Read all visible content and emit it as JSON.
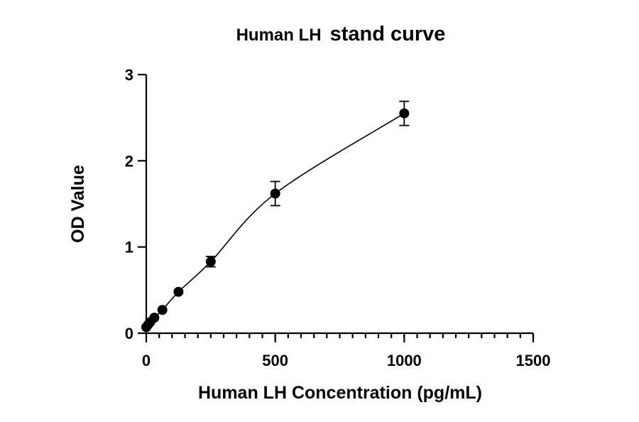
{
  "chart_data": {
    "type": "scatter",
    "title_part1": "Human LH",
    "title_part2": "stand curve",
    "xlabel": "Human LH Concentration (pg/mL)",
    "ylabel": "OD Value",
    "xlim": [
      0,
      1500
    ],
    "ylim": [
      0,
      3
    ],
    "x_ticks": [
      0,
      500,
      1000,
      1500
    ],
    "y_ticks": [
      0,
      1,
      2,
      3
    ],
    "x_minor_step": 50,
    "grid": false,
    "fit_curve": true,
    "series": [
      {
        "points": [
          {
            "x": 0,
            "y": 0.07,
            "err": 0
          },
          {
            "x": 7.8,
            "y": 0.1,
            "err": 0
          },
          {
            "x": 15.6,
            "y": 0.13,
            "err": 0
          },
          {
            "x": 31.25,
            "y": 0.18,
            "err": 0
          },
          {
            "x": 62.5,
            "y": 0.27,
            "err": 0
          },
          {
            "x": 125,
            "y": 0.48,
            "err": 0
          },
          {
            "x": 250,
            "y": 0.83,
            "err": 0.06
          },
          {
            "x": 500,
            "y": 1.62,
            "err": 0.14
          },
          {
            "x": 1000,
            "y": 2.55,
            "err": 0.14
          }
        ]
      }
    ]
  }
}
